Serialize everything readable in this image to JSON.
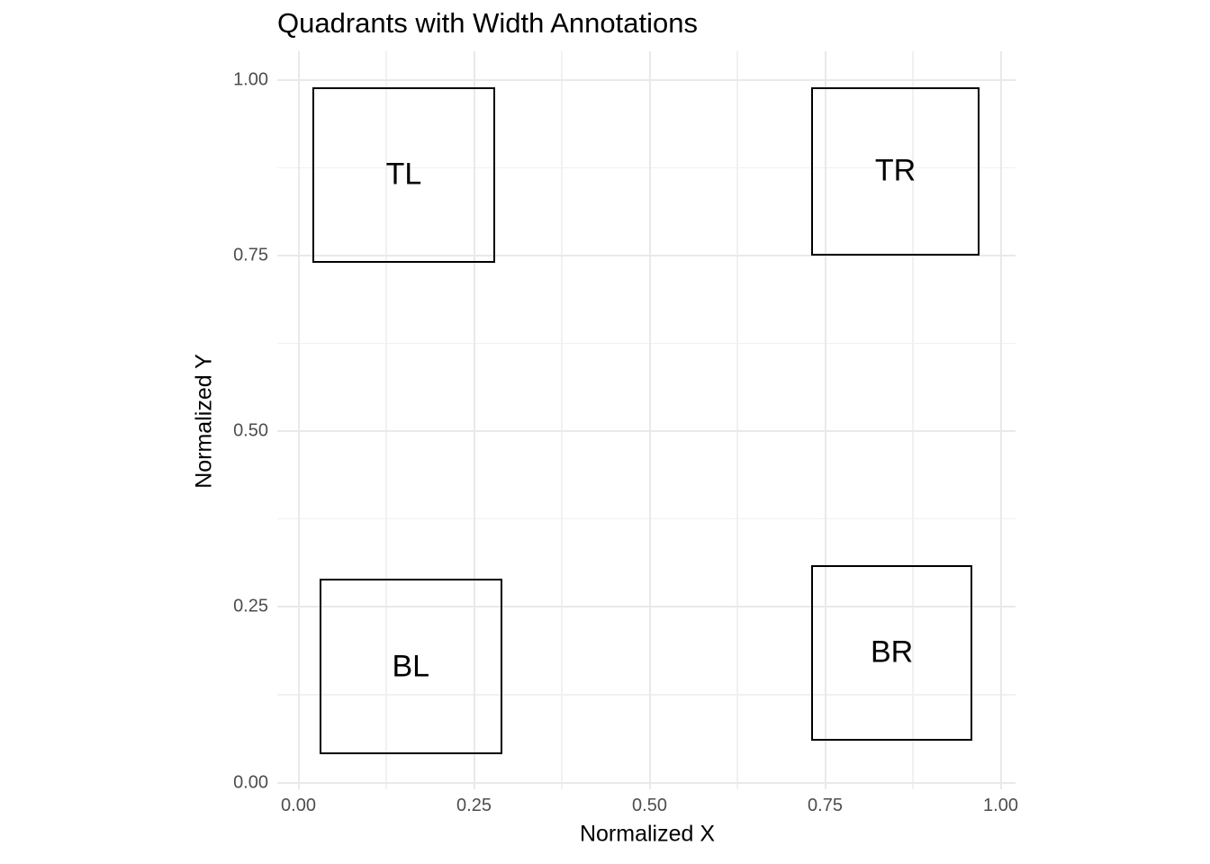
{
  "title": "Quadrants with Width Annotations",
  "axes": {
    "x": {
      "title": "Normalized X",
      "ticks": [
        {
          "value": 0.0,
          "label": "0.00"
        },
        {
          "value": 0.25,
          "label": "0.25"
        },
        {
          "value": 0.5,
          "label": "0.50"
        },
        {
          "value": 0.75,
          "label": "0.75"
        },
        {
          "value": 1.0,
          "label": "1.00"
        }
      ]
    },
    "y": {
      "title": "Normalized Y",
      "ticks": [
        {
          "value": 0.0,
          "label": "0.00"
        },
        {
          "value": 0.25,
          "label": "0.25"
        },
        {
          "value": 0.5,
          "label": "0.50"
        },
        {
          "value": 0.75,
          "label": "0.75"
        },
        {
          "value": 1.0,
          "label": "1.00"
        }
      ]
    }
  },
  "chart_data": {
    "type": "rect",
    "title": "Quadrants with Width Annotations",
    "xlabel": "Normalized X",
    "ylabel": "Normalized Y",
    "xlim": [
      -0.03,
      1.02
    ],
    "ylim": [
      -0.01,
      1.04
    ],
    "x_major_ticks": [
      0.0,
      0.25,
      0.5,
      0.75,
      1.0
    ],
    "y_major_ticks": [
      0.0,
      0.25,
      0.5,
      0.75,
      1.0
    ],
    "x_minor_ticks": [
      0.125,
      0.375,
      0.625,
      0.875
    ],
    "y_minor_ticks": [
      0.125,
      0.375,
      0.625,
      0.875
    ],
    "grid": true,
    "legend": false,
    "rects": [
      {
        "label": "TL",
        "xmin": 0.02,
        "xmax": 0.28,
        "ymin": 0.74,
        "ymax": 0.99
      },
      {
        "label": "TR",
        "xmin": 0.73,
        "xmax": 0.97,
        "ymin": 0.75,
        "ymax": 0.99
      },
      {
        "label": "BL",
        "xmin": 0.03,
        "xmax": 0.29,
        "ymin": 0.04,
        "ymax": 0.29
      },
      {
        "label": "BR",
        "xmin": 0.73,
        "xmax": 0.96,
        "ymin": 0.06,
        "ymax": 0.31
      }
    ]
  },
  "colors": {
    "background": "#FFFFFF",
    "grid_major": "#E9E9E9",
    "grid_minor": "#F1F1F1",
    "rect_border": "#000000",
    "tick_label": "#4D4D4D",
    "text": "#000000"
  }
}
